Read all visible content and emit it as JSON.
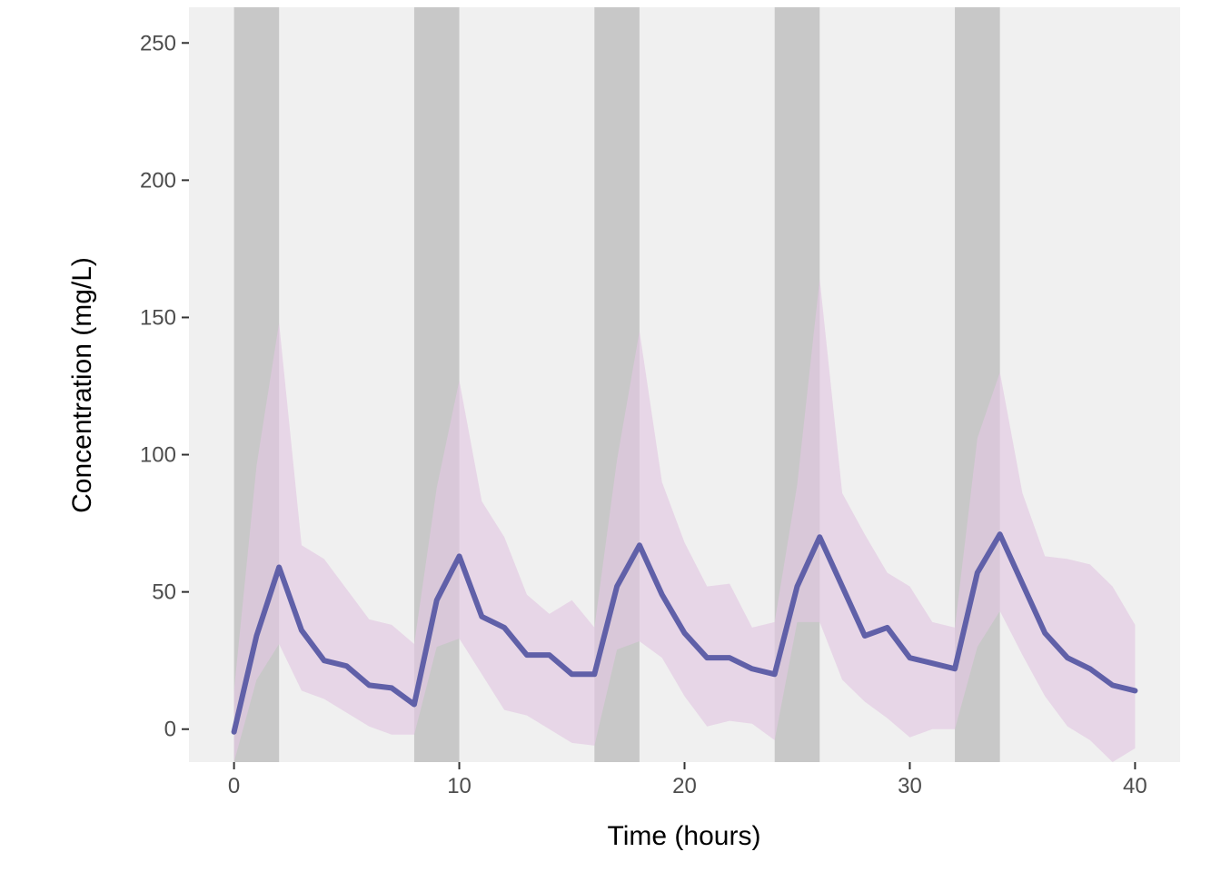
{
  "chart_data": {
    "type": "line",
    "title": "",
    "xlabel": "Time (hours)",
    "ylabel": "Concentration (mg/L)",
    "xlim": [
      -2,
      42
    ],
    "ylim": [
      -12,
      263
    ],
    "xticks": [
      0,
      10,
      20,
      30,
      40
    ],
    "yticks": [
      0,
      50,
      100,
      150,
      200,
      250
    ],
    "grid": false,
    "legend": "none",
    "colors": {
      "panel_background": "#f0f0f0",
      "dosing_band": "#c8c8c8",
      "ribbon": "#e2c8e2",
      "line": "#6060a8",
      "tick": "#333333"
    },
    "dosing_intervals": [
      [
        0,
        2
      ],
      [
        8,
        10
      ],
      [
        16,
        18
      ],
      [
        24,
        26
      ],
      [
        32,
        34
      ]
    ],
    "series": [
      {
        "x": [
          0,
          1,
          2,
          3,
          4,
          5,
          6,
          7,
          8,
          9,
          10,
          11,
          12,
          13,
          14,
          15,
          16,
          17,
          18,
          19,
          20,
          21,
          22,
          23,
          24,
          25,
          26,
          27,
          28,
          29,
          30,
          31,
          32,
          33,
          34,
          35,
          36,
          37,
          38,
          39,
          40
        ],
        "values": [
          -1,
          34,
          59,
          36,
          25,
          23,
          16,
          15,
          9,
          47,
          63,
          41,
          37,
          27,
          27,
          20,
          20,
          52,
          67,
          49,
          35,
          26,
          26,
          22,
          20,
          52,
          70,
          52,
          34,
          37,
          26,
          24,
          22,
          57,
          71,
          53,
          35,
          26,
          22,
          16,
          14
        ],
        "lower": [
          -12,
          18,
          31,
          14,
          11,
          6,
          1,
          -2,
          -2,
          30,
          33,
          20,
          7,
          5,
          0,
          -5,
          -6,
          29,
          32,
          26,
          12,
          1,
          3,
          2,
          -4,
          39,
          39,
          18,
          10,
          4,
          -3,
          0,
          0,
          30,
          43,
          27,
          12,
          1,
          -4,
          -13,
          -7
        ],
        "upper": [
          14,
          96,
          148,
          67,
          62,
          51,
          40,
          38,
          31,
          88,
          127,
          83,
          70,
          49,
          42,
          47,
          37,
          98,
          145,
          90,
          68,
          52,
          53,
          37,
          39,
          89,
          164,
          86,
          71,
          57,
          52,
          39,
          37,
          106,
          130,
          86,
          63,
          62,
          60,
          52,
          38
        ]
      }
    ]
  }
}
